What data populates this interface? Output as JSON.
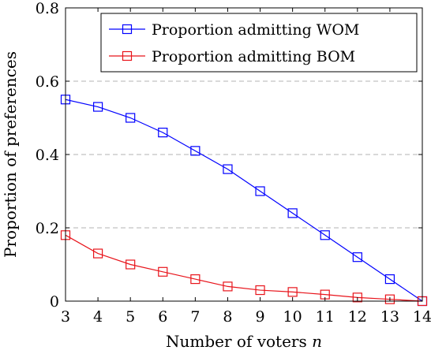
{
  "chart_data": {
    "type": "line",
    "xlabel": "Number of voters n",
    "ylabel": "Proportion of preferences",
    "x": [
      3,
      4,
      5,
      6,
      7,
      8,
      9,
      10,
      11,
      12,
      13,
      14
    ],
    "xlim": [
      3,
      14
    ],
    "ylim": [
      0,
      0.8
    ],
    "x_ticks": [
      "3",
      "4",
      "5",
      "6",
      "7",
      "8",
      "9",
      "10",
      "11",
      "12",
      "13",
      "14"
    ],
    "y_ticks": [
      {
        "value": 0,
        "label": "0"
      },
      {
        "value": 0.2,
        "label": "0.2"
      },
      {
        "value": 0.4,
        "label": "0.4"
      },
      {
        "value": 0.6,
        "label": "0.6"
      },
      {
        "value": 0.8,
        "label": "0.8"
      }
    ],
    "grid": "horizontal dashed",
    "legend_position": "top-right",
    "series": [
      {
        "name": "Proportion admitting WOM",
        "color": "#0000ff",
        "marker": "square",
        "values": [
          0.55,
          0.53,
          0.5,
          0.46,
          0.41,
          0.36,
          0.3,
          0.24,
          0.18,
          0.12,
          0.06,
          0.0
        ]
      },
      {
        "name": "Proportion admitting BOM",
        "color": "#e8141b",
        "marker": "square",
        "values": [
          0.18,
          0.13,
          0.1,
          0.08,
          0.06,
          0.04,
          0.03,
          0.025,
          0.018,
          0.01,
          0.005,
          0.0
        ]
      }
    ]
  }
}
